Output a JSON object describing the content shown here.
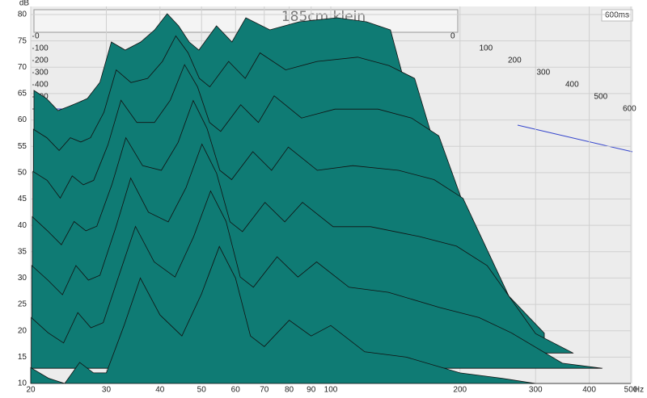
{
  "chart_data": {
    "type": "waterfall",
    "title": "185cm klein",
    "y_label": "dB",
    "x_unit": "Hz",
    "z_end_label": "600ms",
    "log_x": true,
    "grid": true,
    "color": "#0f7b74",
    "xlim": [
      20,
      500
    ],
    "xticks": [
      20,
      30,
      40,
      50,
      60,
      70,
      80,
      90,
      100,
      200,
      300,
      400,
      500
    ],
    "ylim": [
      10,
      80
    ],
    "yticks": [
      10,
      15,
      20,
      25,
      30,
      35,
      40,
      45,
      50,
      55,
      60,
      65,
      70,
      75,
      80
    ],
    "zlim": [
      0,
      600
    ],
    "zticks": [
      0,
      100,
      200,
      300,
      400,
      500,
      600
    ],
    "x": [
      20,
      22,
      24,
      26,
      28,
      30,
      33,
      36,
      40,
      45,
      50,
      55,
      60,
      65,
      70,
      80,
      90,
      100,
      120,
      150,
      200,
      250,
      300,
      400,
      500
    ],
    "slices": [
      {
        "z": 0,
        "values": [
          60,
          58,
          55,
          56,
          57,
          58,
          62,
          72,
          70,
          72,
          75,
          79,
          76,
          72,
          70,
          76,
          72,
          78,
          75,
          77,
          78,
          77,
          75,
          40,
          20
        ]
      },
      {
        "z": 100,
        "values": [
          52,
          50,
          47,
          50,
          49,
          50,
          56,
          66,
          63,
          64,
          68,
          74,
          70,
          64,
          62,
          68,
          64,
          70,
          66,
          68,
          69,
          67,
          64,
          32,
          16
        ]
      },
      {
        "z": 200,
        "values": [
          44,
          42,
          38,
          43,
          41,
          42,
          50,
          60,
          55,
          55,
          60,
          68,
          63,
          55,
          53,
          59,
          55,
          61,
          56,
          58,
          58,
          56,
          52,
          25,
          13
        ]
      },
      {
        "z": 300,
        "values": [
          36,
          33,
          30,
          35,
          33,
          34,
          43,
          53,
          47,
          46,
          52,
          61,
          55,
          46,
          44,
          50,
          46,
          51,
          46,
          47,
          46,
          44,
          40,
          19,
          11
        ]
      },
      {
        "z": 400,
        "values": [
          28,
          25,
          22,
          28,
          25,
          26,
          36,
          46,
          39,
          37,
          44,
          53,
          47,
          37,
          35,
          41,
          37,
          41,
          36,
          36,
          34,
          32,
          28,
          14,
          10
        ]
      },
      {
        "z": 500,
        "values": [
          20,
          17,
          15,
          21,
          18,
          19,
          29,
          38,
          31,
          28,
          36,
          45,
          39,
          28,
          26,
          32,
          28,
          31,
          26,
          25,
          22,
          20,
          17,
          11,
          10
        ]
      },
      {
        "z": 600,
        "values": [
          13,
          11,
          10,
          14,
          12,
          12,
          21,
          30,
          23,
          19,
          27,
          36,
          30,
          19,
          17,
          22,
          19,
          21,
          16,
          15,
          12,
          11,
          10,
          10,
          10
        ]
      }
    ]
  }
}
